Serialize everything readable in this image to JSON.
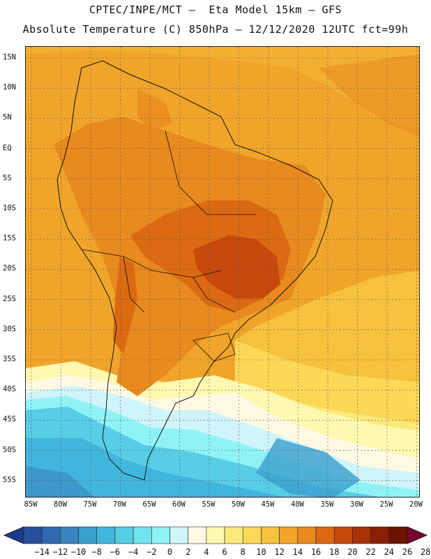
{
  "header": {
    "line1": "CPTEC/INPE/MCT –  Eta Model 15km – GFS",
    "line2": "Absolute Temperature (C) 850hPa – 12/12/2020 12UTC fct=99h"
  },
  "map": {
    "lat_labels": [
      "15N",
      "10N",
      "5N",
      "EQ",
      "5S",
      "10S",
      "15S",
      "20S",
      "25S",
      "30S",
      "35S",
      "40S",
      "45S",
      "50S",
      "55S"
    ],
    "lon_labels": [
      "85W",
      "80W",
      "75W",
      "70W",
      "65W",
      "60W",
      "55W",
      "50W",
      "45W",
      "40W",
      "35W",
      "30W",
      "25W",
      "20W"
    ]
  },
  "colorbar": {
    "labels": [
      "-14",
      "-12",
      "-10",
      "-8",
      "-6",
      "-4",
      "-2",
      "0",
      "2",
      "4",
      "6",
      "8",
      "10",
      "12",
      "14",
      "16",
      "18",
      "20",
      "22",
      "24",
      "26",
      "28"
    ],
    "colors": [
      "#1c3a8c",
      "#24509e",
      "#2e6aae",
      "#3a84bf",
      "#3b9fce",
      "#41b6dd",
      "#57cde6",
      "#71e3ef",
      "#8ff3f6",
      "#cff4fa",
      "#fff9e4",
      "#fff8b0",
      "#ffe97a",
      "#fcd857",
      "#f6c13c",
      "#f0a52a",
      "#e88a1e",
      "#dc6a12",
      "#c8490c",
      "#a83206",
      "#8a2004",
      "#6a1400",
      "#7a0030"
    ]
  }
}
